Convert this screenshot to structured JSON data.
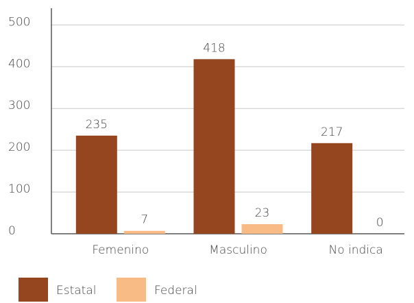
{
  "chart_data": {
    "type": "bar",
    "categories": [
      "Femenino",
      "Masculino",
      "No indica"
    ],
    "series": [
      {
        "name": "Estatal",
        "color": "#96461f",
        "values": [
          235,
          418,
          217
        ]
      },
      {
        "name": "Federal",
        "color": "#f9bb86",
        "values": [
          7,
          23,
          0
        ]
      }
    ],
    "ylim": [
      0,
      540
    ],
    "yticks": [
      0,
      100,
      200,
      300,
      400,
      500
    ],
    "grid": true,
    "legend": "bottom"
  }
}
